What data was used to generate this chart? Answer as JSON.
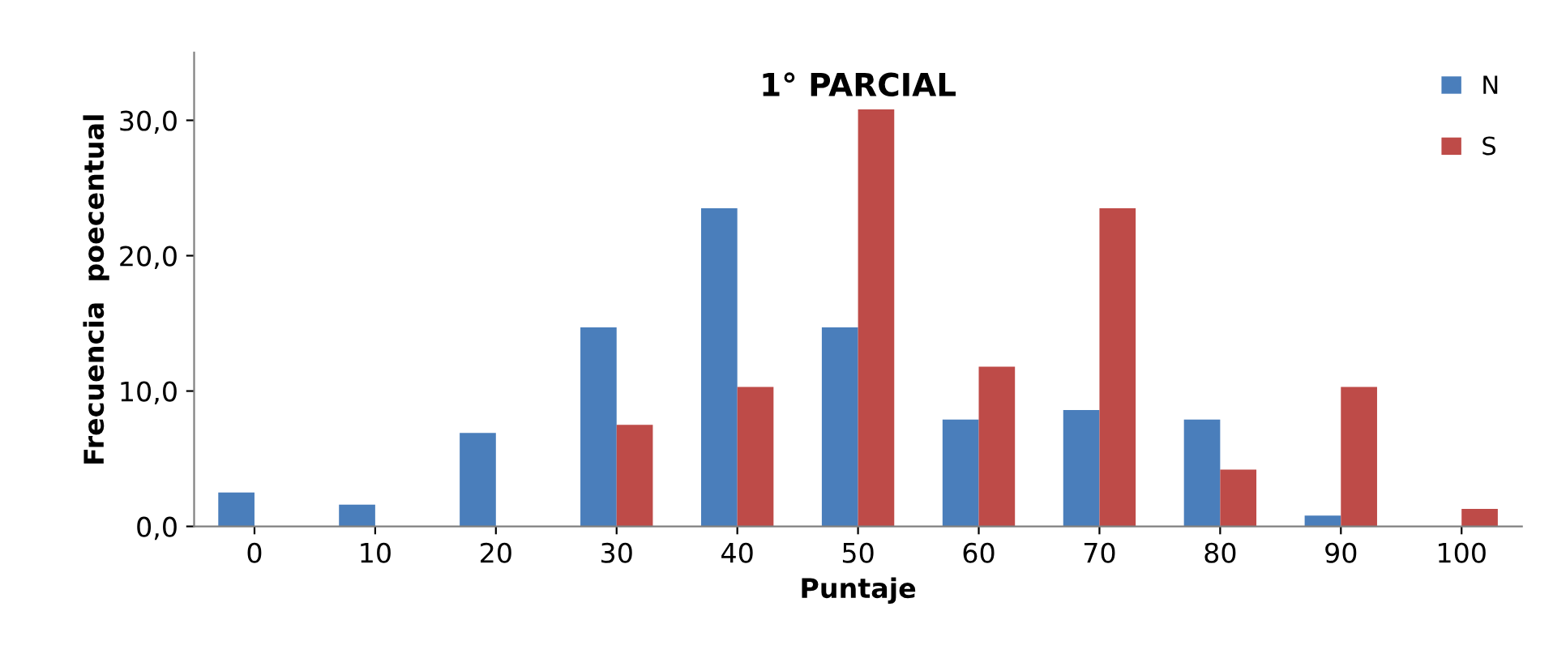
{
  "chart_data": {
    "type": "bar",
    "title": "1° PARCIAL",
    "xlabel": "Puntaje",
    "ylabel": "Frecuencia  poecentual",
    "categories": [
      "0",
      "10",
      "20",
      "30",
      "40",
      "50",
      "60",
      "70",
      "80",
      "90",
      "100"
    ],
    "series": [
      {
        "name": "N",
        "color": "#4a7ebb",
        "values": [
          2.5,
          1.6,
          6.9,
          14.7,
          23.5,
          14.7,
          7.9,
          8.6,
          7.9,
          0.8,
          0
        ]
      },
      {
        "name": "S",
        "color": "#be4b48",
        "values": [
          0,
          0,
          0,
          7.5,
          10.3,
          30.8,
          11.8,
          23.5,
          4.2,
          10.3,
          1.3
        ]
      }
    ],
    "ylim": [
      0,
      35
    ],
    "yticks": [
      {
        "value": 0,
        "label": "0,0"
      },
      {
        "value": 10,
        "label": "10,0"
      },
      {
        "value": 20,
        "label": "20,0"
      },
      {
        "value": 30,
        "label": "30,0"
      }
    ],
    "grid": false,
    "legend": "top right"
  }
}
